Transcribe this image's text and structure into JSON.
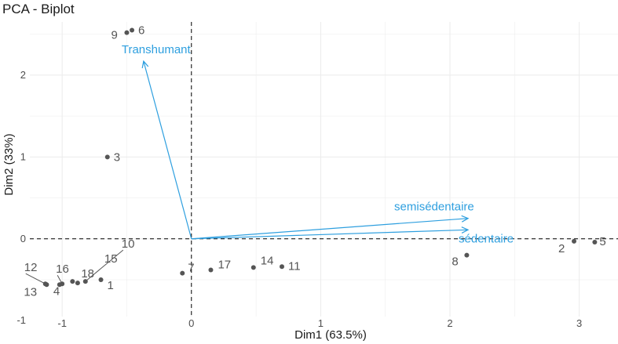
{
  "chart_data": {
    "type": "scatter",
    "title": "PCA - Biplot",
    "xlabel": "Dim1 (63.5%)",
    "ylabel": "Dim2 (33%)",
    "xlim": [
      -1.25,
      3.3
    ],
    "ylim": [
      -0.95,
      2.65
    ],
    "x_ticks": [
      -1,
      0,
      1,
      2,
      3
    ],
    "y_ticks": [
      -1,
      0,
      1,
      2
    ],
    "grid": true,
    "reference_lines": {
      "x": 0,
      "y": 0,
      "style": "dashed"
    },
    "point_color": "#555555",
    "variable_color": "#2e9fdf",
    "points": [
      {
        "label": "9",
        "x": -0.5,
        "y": 2.52
      },
      {
        "label": "6",
        "x": -0.46,
        "y": 2.55
      },
      {
        "label": "3",
        "x": -0.65,
        "y": 1.0
      },
      {
        "label": "2",
        "x": 2.96,
        "y": -0.03
      },
      {
        "label": "5",
        "x": 3.12,
        "y": -0.04
      },
      {
        "label": "8",
        "x": 2.13,
        "y": -0.2
      },
      {
        "label": "7",
        "x": -0.07,
        "y": -0.42
      },
      {
        "label": "17",
        "x": 0.15,
        "y": -0.38
      },
      {
        "label": "14",
        "x": 0.48,
        "y": -0.35
      },
      {
        "label": "11",
        "x": 0.7,
        "y": -0.34
      },
      {
        "label": "10",
        "x": -0.82,
        "y": -0.52
      },
      {
        "label": "15",
        "x": -0.88,
        "y": -0.54
      },
      {
        "label": "18",
        "x": -0.92,
        "y": -0.52
      },
      {
        "label": "1",
        "x": -0.7,
        "y": -0.5
      },
      {
        "label": "16",
        "x": -1.0,
        "y": -0.55
      },
      {
        "label": "12",
        "x": -1.13,
        "y": -0.55
      },
      {
        "label": "13",
        "x": -1.12,
        "y": -0.56
      },
      {
        "label": "4",
        "x": -1.02,
        "y": -0.56
      }
    ],
    "variables": [
      {
        "name": "Transhumant",
        "x": -0.37,
        "y": 2.17
      },
      {
        "name": "semisédentaire",
        "x": 2.14,
        "y": 0.25
      },
      {
        "name": "sédentaire",
        "x": 2.14,
        "y": 0.11
      }
    ]
  }
}
